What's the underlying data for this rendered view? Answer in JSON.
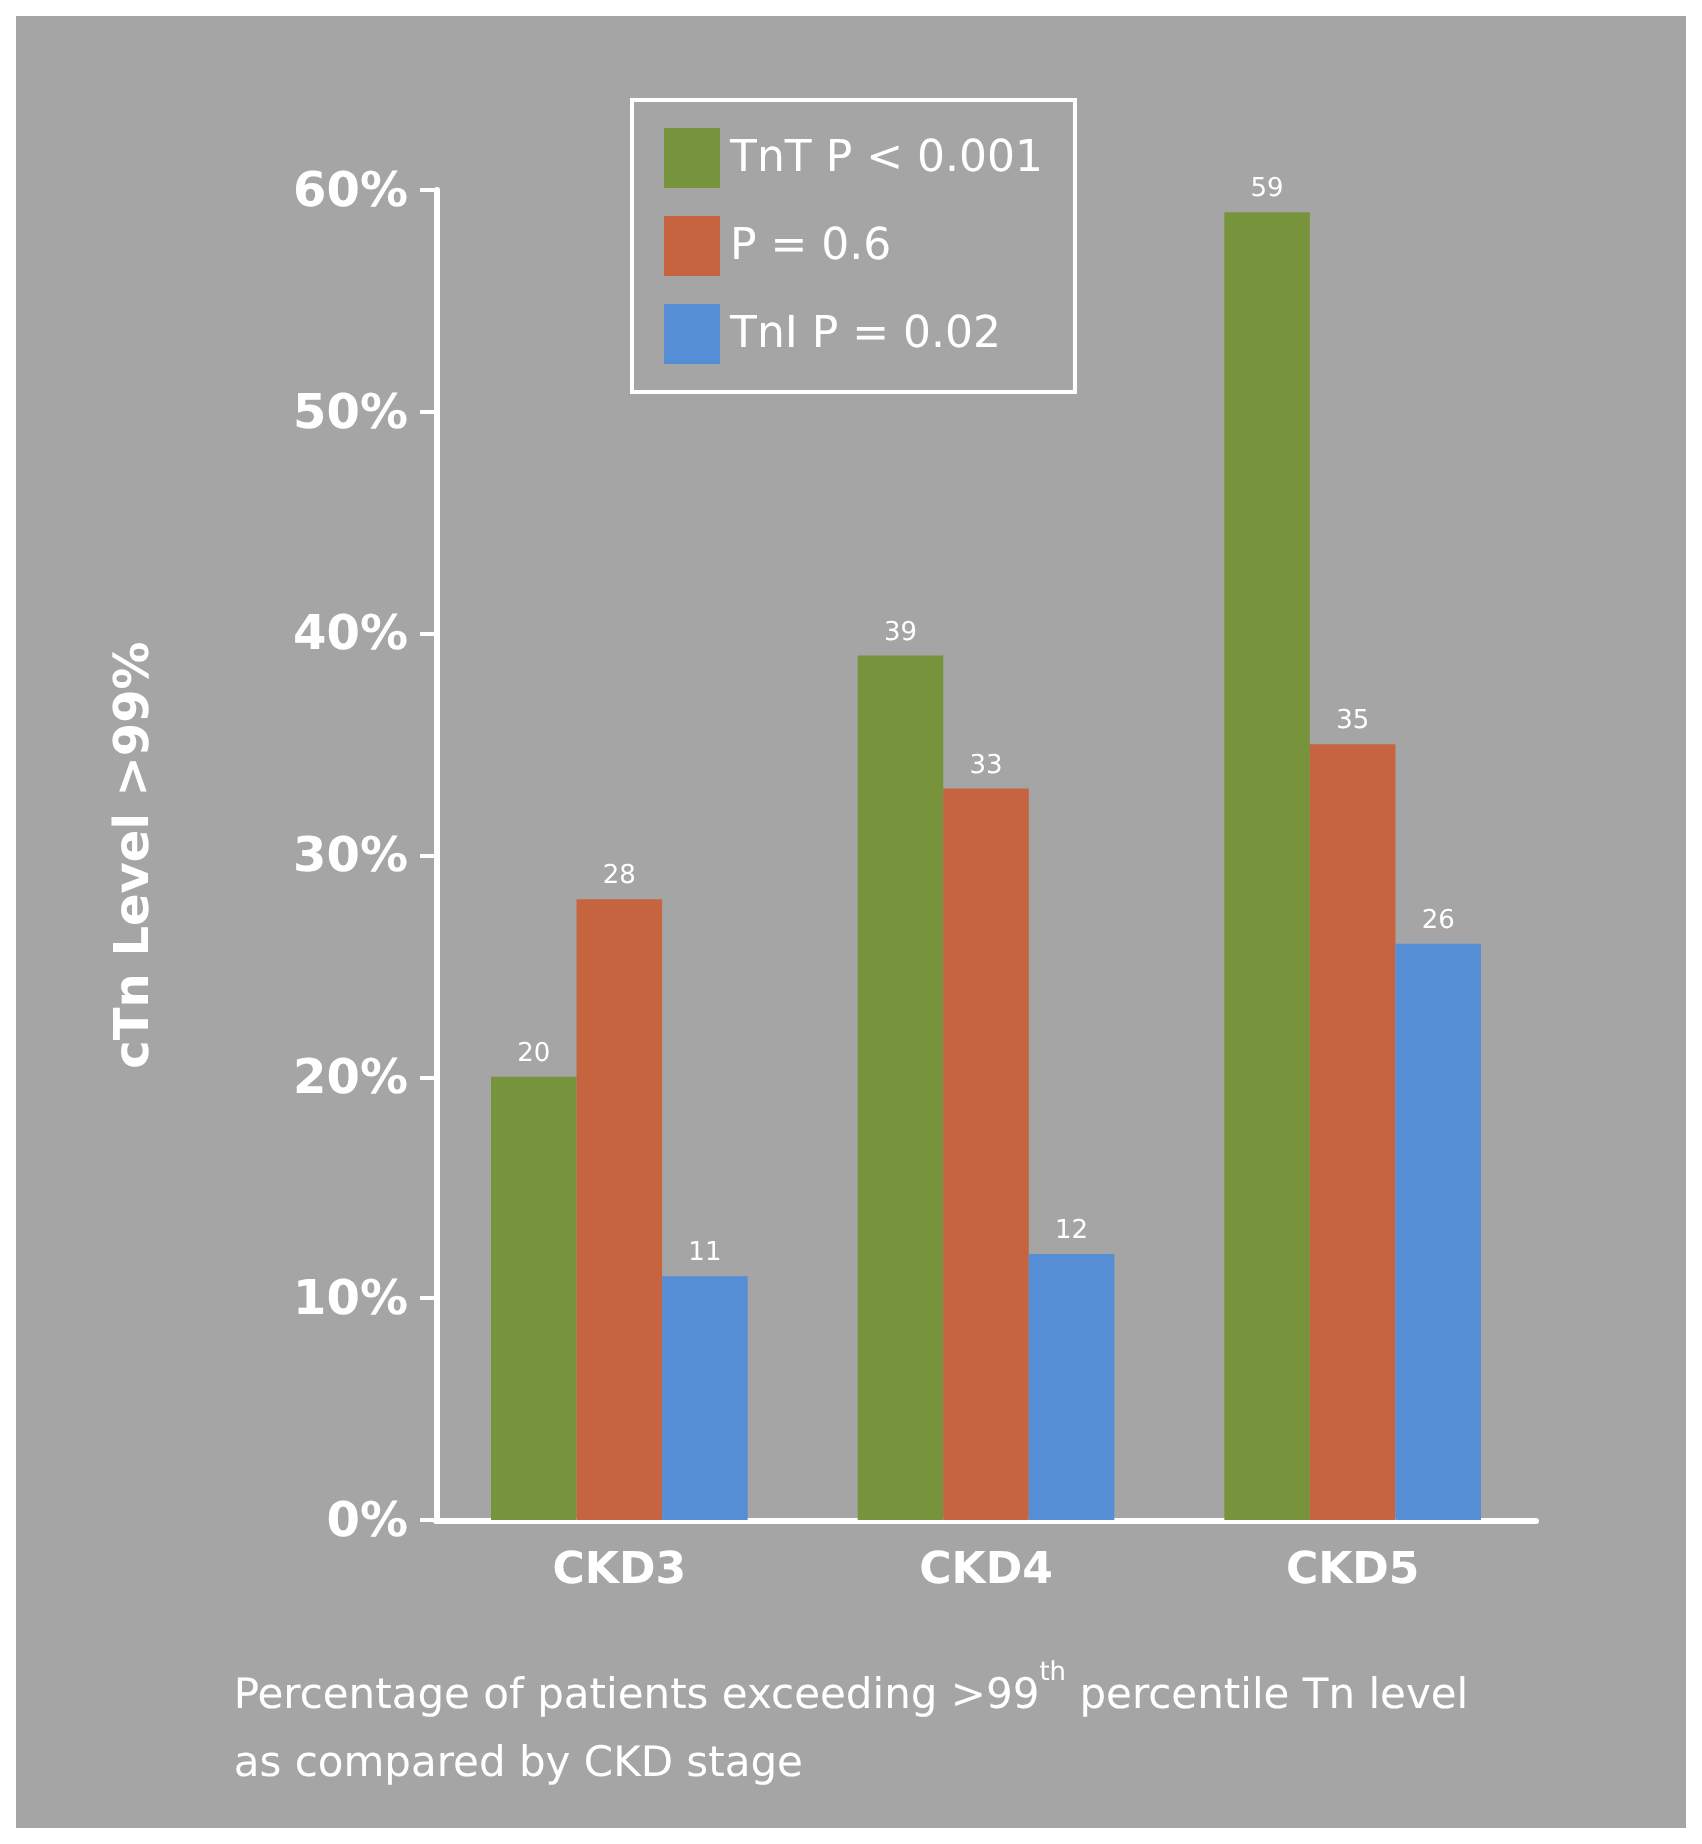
{
  "chart_data": {
    "type": "bar",
    "categories": [
      "CKD3",
      "CKD4",
      "CKD5"
    ],
    "series": [
      {
        "name": "TnT P < 0.001",
        "color": "#77933c",
        "values": [
          20,
          39,
          59
        ]
      },
      {
        "name": "P = 0.6",
        "color": "#c5643f",
        "values": [
          28,
          33,
          35
        ]
      },
      {
        "name": "TnI P = 0.02",
        "color": "#558ed5",
        "values": [
          11,
          12,
          26
        ]
      }
    ],
    "ylim": [
      0,
      60
    ],
    "yticks": [
      {
        "value": 0,
        "label": "0%"
      },
      {
        "value": 10,
        "label": "10%"
      },
      {
        "value": 20,
        "label": "20%"
      },
      {
        "value": 30,
        "label": "30%"
      },
      {
        "value": 40,
        "label": "40%"
      },
      {
        "value": 50,
        "label": "50%"
      },
      {
        "value": 60,
        "label": "60%"
      }
    ],
    "ylabel": "cTn Level >99%",
    "xlabel": "Percentage of patients exceeding >99$^{th}$ percentile Tn level\nas compared by CKD stage",
    "data_labels": true,
    "legend": "top",
    "grid": false
  }
}
